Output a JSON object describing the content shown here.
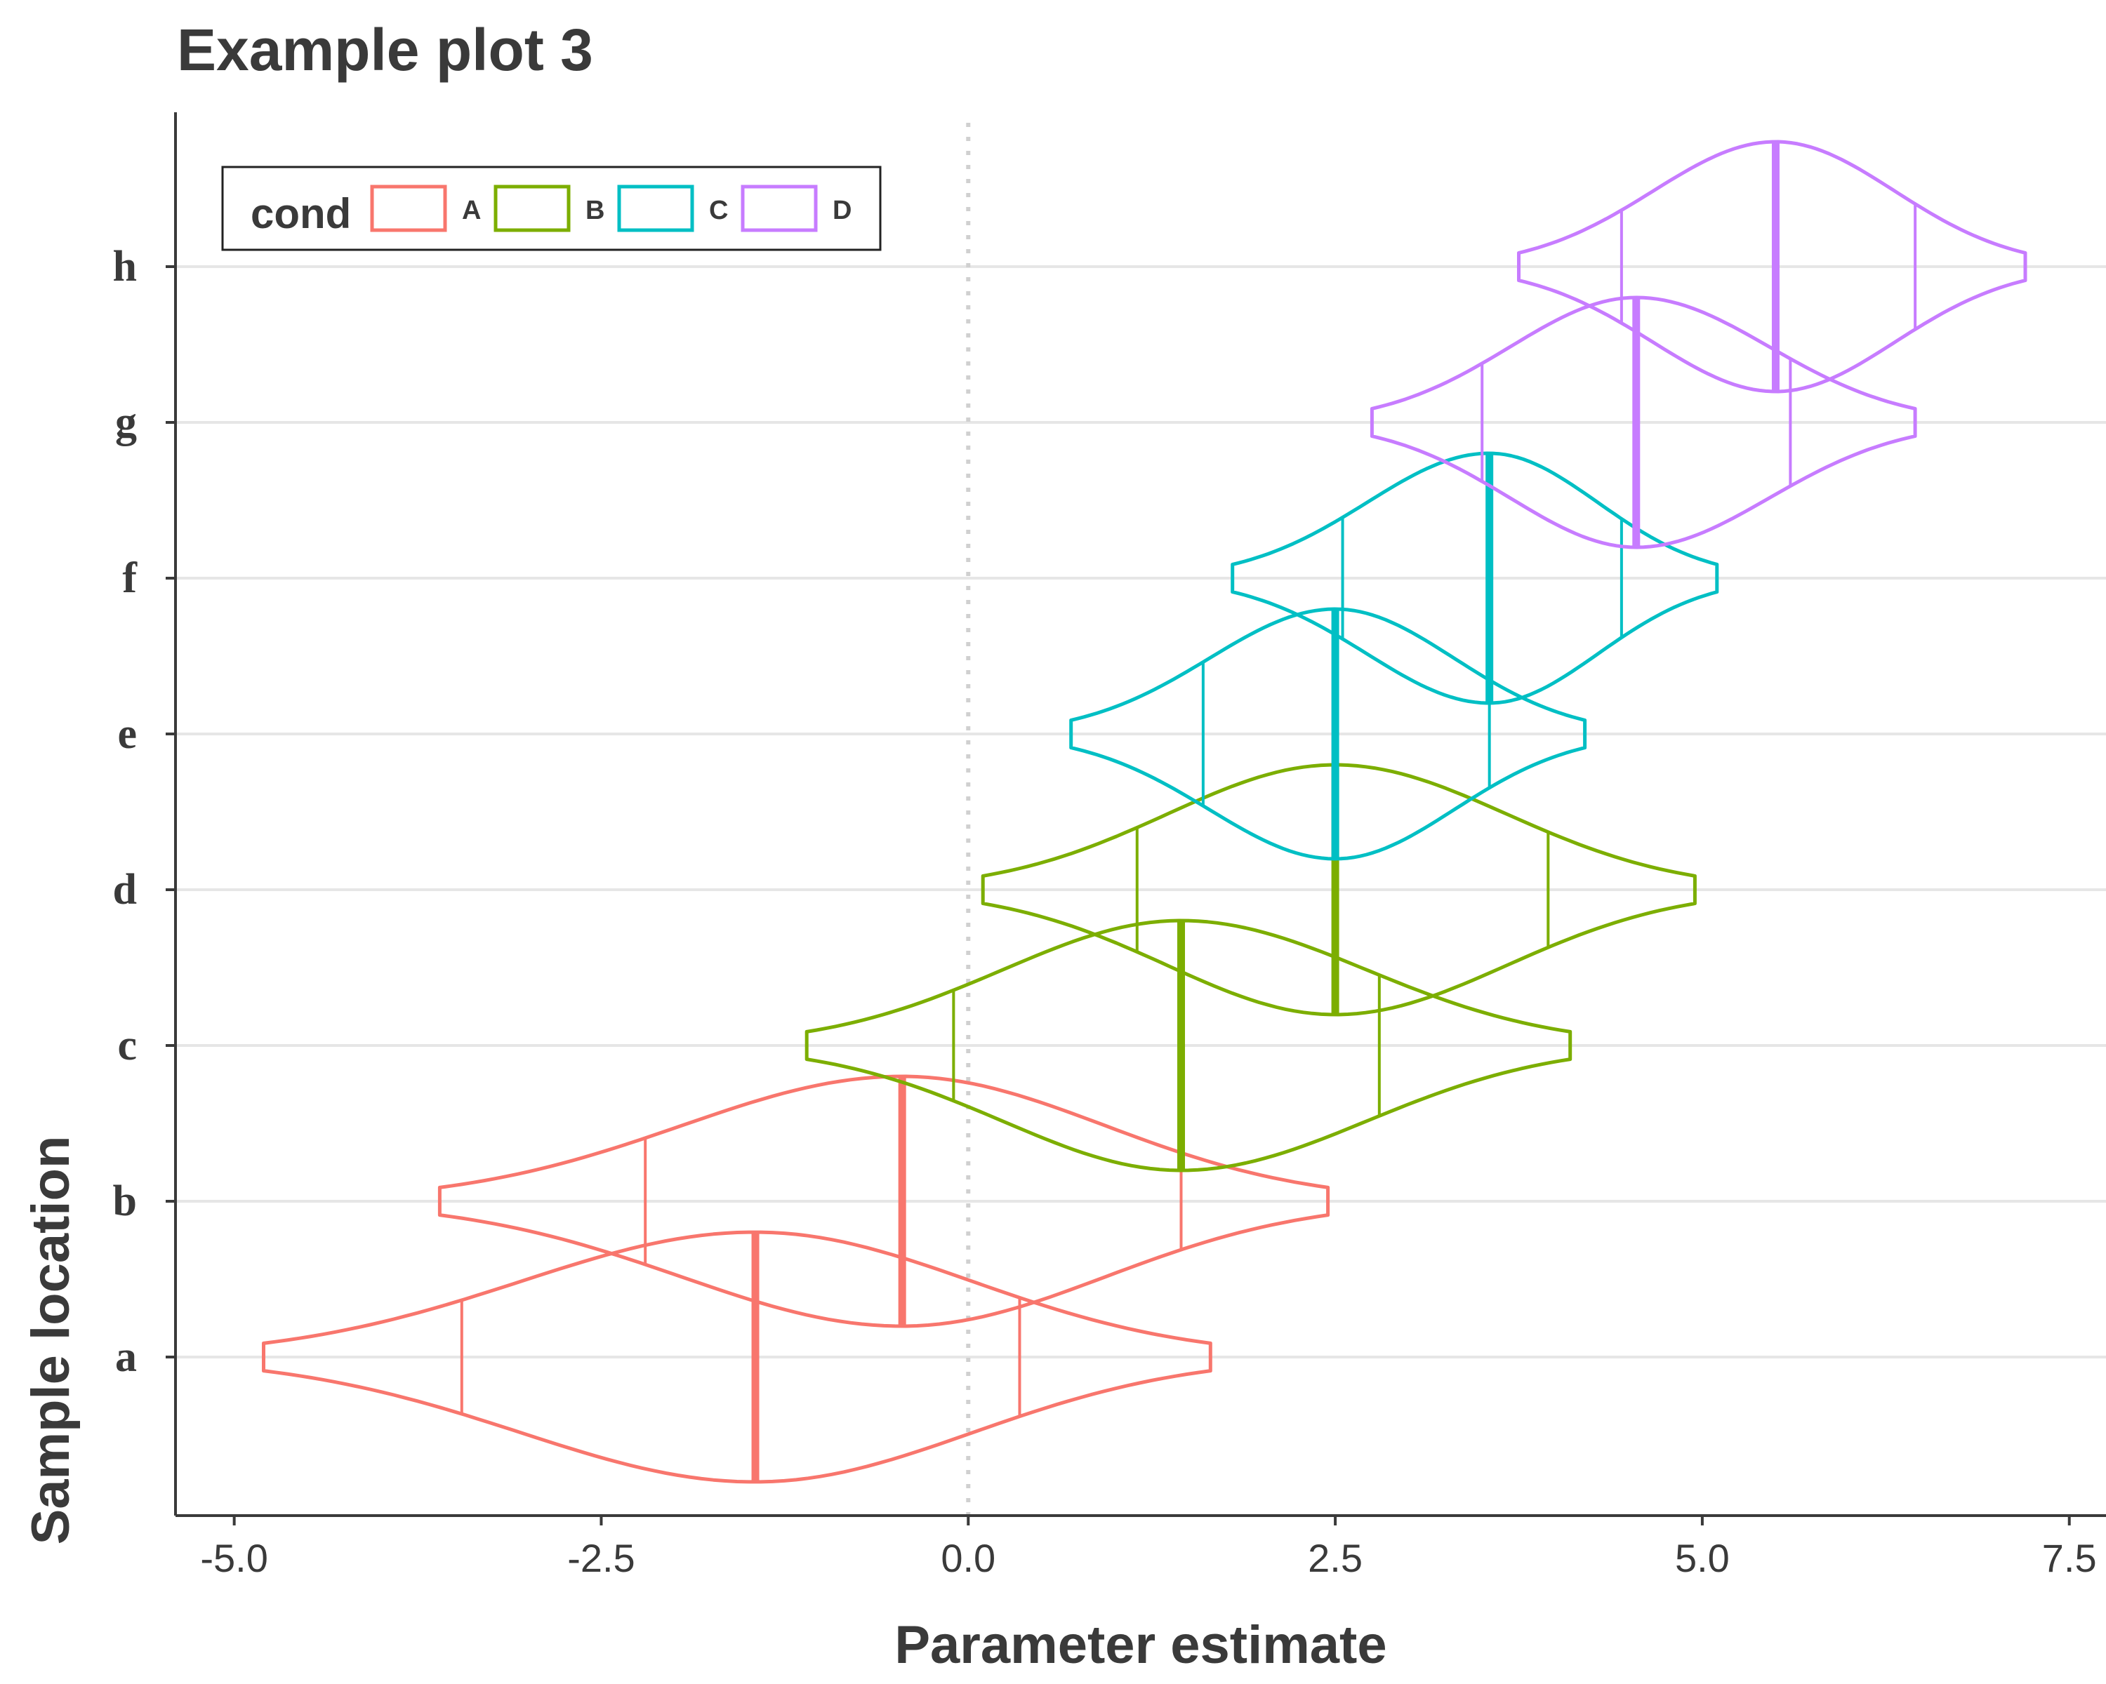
{
  "chart_data": {
    "type": "violin",
    "title": "Example plot 3",
    "xlabel": "Parameter estimate",
    "ylabel": "Sample location",
    "xlim": [
      -5.4,
      7.75
    ],
    "xticks": [
      -5.0,
      -2.5,
      0.0,
      2.5,
      5.0,
      7.5
    ],
    "xtick_labels": [
      "-5.0",
      "-2.5",
      "0.0",
      "2.5",
      "5.0",
      "7.5"
    ],
    "categories": [
      "a",
      "b",
      "c",
      "d",
      "e",
      "f",
      "g",
      "h"
    ],
    "reference_line": {
      "x": 0.0,
      "style": "dotted"
    },
    "grid": "horizontal",
    "legend": {
      "title": "cond",
      "position": "top-left",
      "entries": [
        {
          "label": "A",
          "color": "#F8766D"
        },
        {
          "label": "B",
          "color": "#7CAE00"
        },
        {
          "label": "C",
          "color": "#00BFC4"
        },
        {
          "label": "D",
          "color": "#C77CFF"
        }
      ]
    },
    "series": [
      {
        "name": "A",
        "color": "#F8766D",
        "violins": [
          {
            "category": "a",
            "min": -4.8,
            "max": 1.65,
            "q1": -3.45,
            "median": -1.45,
            "q3": 0.35
          },
          {
            "category": "b",
            "min": -3.6,
            "max": 2.45,
            "q1": -2.2,
            "median": -0.45,
            "q3": 1.45
          }
        ]
      },
      {
        "name": "B",
        "color": "#7CAE00",
        "violins": [
          {
            "category": "c",
            "min": -1.1,
            "max": 4.1,
            "q1": -0.1,
            "median": 1.45,
            "q3": 2.8
          },
          {
            "category": "d",
            "min": 0.1,
            "max": 4.95,
            "q1": 1.15,
            "median": 2.5,
            "q3": 3.95
          }
        ]
      },
      {
        "name": "C",
        "color": "#00BFC4",
        "violins": [
          {
            "category": "e",
            "min": 0.7,
            "max": 4.2,
            "q1": 1.6,
            "median": 2.5,
            "q3": 3.55
          },
          {
            "category": "f",
            "min": 1.8,
            "max": 5.1,
            "q1": 2.55,
            "median": 3.55,
            "q3": 4.45
          }
        ]
      },
      {
        "name": "D",
        "color": "#C77CFF",
        "violins": [
          {
            "category": "g",
            "min": 2.75,
            "max": 6.45,
            "q1": 3.5,
            "median": 4.55,
            "q3": 5.6
          },
          {
            "category": "h",
            "min": 3.75,
            "max": 7.2,
            "q1": 4.45,
            "median": 5.5,
            "q3": 6.45
          }
        ]
      }
    ]
  }
}
